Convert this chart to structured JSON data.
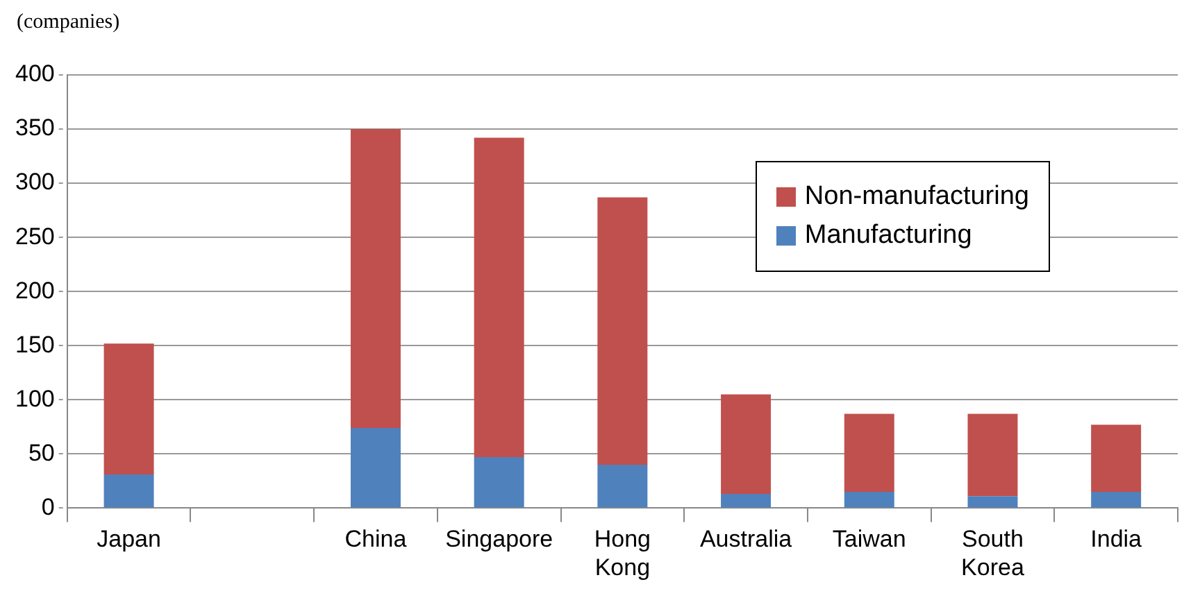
{
  "chart_data": {
    "type": "bar",
    "ylabel": "(companies)",
    "categories": [
      "Japan",
      null,
      "China",
      "Singapore",
      "Hong Kong",
      "Australia",
      "Taiwan",
      "South Korea",
      "India"
    ],
    "series": [
      {
        "name": "Manufacturing",
        "color": "#4f81bd",
        "values": [
          31,
          null,
          74,
          47,
          40,
          13,
          15,
          11,
          15
        ]
      },
      {
        "name": "Non-manufacturing",
        "color": "#c0504d",
        "values": [
          121,
          null,
          276,
          295,
          247,
          92,
          72,
          76,
          62
        ]
      }
    ],
    "stacked": true,
    "ylim": [
      0,
      400
    ],
    "yticks": [
      0,
      50,
      100,
      150,
      200,
      250,
      300,
      350,
      400
    ],
    "grid": "y",
    "legend": "top right"
  }
}
